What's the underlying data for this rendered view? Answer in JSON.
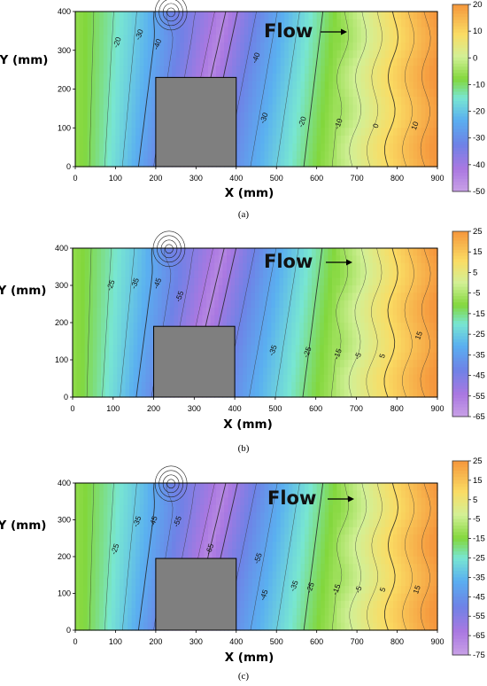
{
  "chart_data": [
    {
      "type": "heatmap",
      "caption": "(a)",
      "xlabel": "X (mm)",
      "ylabel": "Y (mm)",
      "xlim": [
        0,
        900
      ],
      "ylim": [
        0,
        400
      ],
      "x_ticks": [
        "0",
        "100",
        "200",
        "300",
        "400",
        "500",
        "600",
        "700",
        "800",
        "900"
      ],
      "y_ticks": [
        "0",
        "100",
        "200",
        "300",
        "400"
      ],
      "colorbar": {
        "min": -50,
        "max": 20,
        "ticks": [
          "20",
          "10",
          "0",
          "-10",
          "-20",
          "-30",
          "-40",
          "-50"
        ]
      },
      "annotation": "Flow",
      "obstacle": {
        "x0": 200,
        "x1": 400,
        "y0": 0,
        "y1": 230
      },
      "contour_labels": [
        {
          "text": "-20",
          "x": 105,
          "y": 320
        },
        {
          "text": "-30",
          "x": 160,
          "y": 340
        },
        {
          "text": "-40",
          "x": 205,
          "y": 315
        },
        {
          "text": "-40",
          "x": 450,
          "y": 280
        },
        {
          "text": "-30",
          "x": 470,
          "y": 125
        },
        {
          "text": "-20",
          "x": 565,
          "y": 115
        },
        {
          "text": "-10",
          "x": 655,
          "y": 110
        },
        {
          "text": "0",
          "x": 748,
          "y": 105
        },
        {
          "text": "10",
          "x": 845,
          "y": 105
        }
      ]
    },
    {
      "type": "heatmap",
      "caption": "(b)",
      "xlabel": "X (mm)",
      "ylabel": "Y (mm)",
      "xlim": [
        0,
        900
      ],
      "ylim": [
        0,
        400
      ],
      "x_ticks": [
        "0",
        "100",
        "200",
        "300",
        "400",
        "500",
        "600",
        "700",
        "800",
        "900"
      ],
      "y_ticks": [
        "0",
        "100",
        "200",
        "300",
        "400"
      ],
      "colorbar": {
        "min": -65,
        "max": 25,
        "ticks": [
          "25",
          "15",
          "5",
          "-5",
          "-15",
          "-25",
          "-35",
          "-45",
          "-55",
          "-65"
        ]
      },
      "annotation": "Flow",
      "obstacle": {
        "x0": 200,
        "x1": 400,
        "y0": 0,
        "y1": 190
      },
      "contour_labels": [
        {
          "text": "-25",
          "x": 95,
          "y": 300
        },
        {
          "text": "-35",
          "x": 155,
          "y": 305
        },
        {
          "text": "-45",
          "x": 210,
          "y": 305
        },
        {
          "text": "-55",
          "x": 265,
          "y": 270
        },
        {
          "text": "-35",
          "x": 495,
          "y": 125
        },
        {
          "text": "-25",
          "x": 580,
          "y": 120
        },
        {
          "text": "-15",
          "x": 655,
          "y": 115
        },
        {
          "text": "-5",
          "x": 705,
          "y": 110
        },
        {
          "text": "5",
          "x": 765,
          "y": 110
        },
        {
          "text": "15",
          "x": 855,
          "y": 165
        }
      ]
    },
    {
      "type": "heatmap",
      "caption": "(c)",
      "xlabel": "X (mm)",
      "ylabel": "Y (mm)",
      "xlim": [
        0,
        900
      ],
      "ylim": [
        0,
        400
      ],
      "x_ticks": [
        "0",
        "100",
        "200",
        "300",
        "400",
        "500",
        "600",
        "700",
        "800",
        "900"
      ],
      "y_ticks": [
        "0",
        "100",
        "200",
        "300",
        "400"
      ],
      "colorbar": {
        "min": -75,
        "max": 25,
        "ticks": [
          "25",
          "15",
          "5",
          "-5",
          "-15",
          "-25",
          "-35",
          "-45",
          "-55",
          "-65",
          "-75"
        ]
      },
      "annotation": "Flow",
      "obstacle": {
        "x0": 200,
        "x1": 400,
        "y0": 0,
        "y1": 195
      },
      "contour_labels": [
        {
          "text": "-25",
          "x": 100,
          "y": 220
        },
        {
          "text": "-35",
          "x": 155,
          "y": 295
        },
        {
          "text": "-45",
          "x": 195,
          "y": 295
        },
        {
          "text": "-55",
          "x": 255,
          "y": 295
        },
        {
          "text": "-65",
          "x": 335,
          "y": 220
        },
        {
          "text": "-55",
          "x": 455,
          "y": 195
        },
        {
          "text": "-45",
          "x": 470,
          "y": 95
        },
        {
          "text": "-35",
          "x": 545,
          "y": 120
        },
        {
          "text": "-25",
          "x": 585,
          "y": 115
        },
        {
          "text": "-15",
          "x": 650,
          "y": 110
        },
        {
          "text": "-5",
          "x": 705,
          "y": 110
        },
        {
          "text": "5",
          "x": 765,
          "y": 110
        },
        {
          "text": "15",
          "x": 850,
          "y": 110
        }
      ]
    }
  ]
}
